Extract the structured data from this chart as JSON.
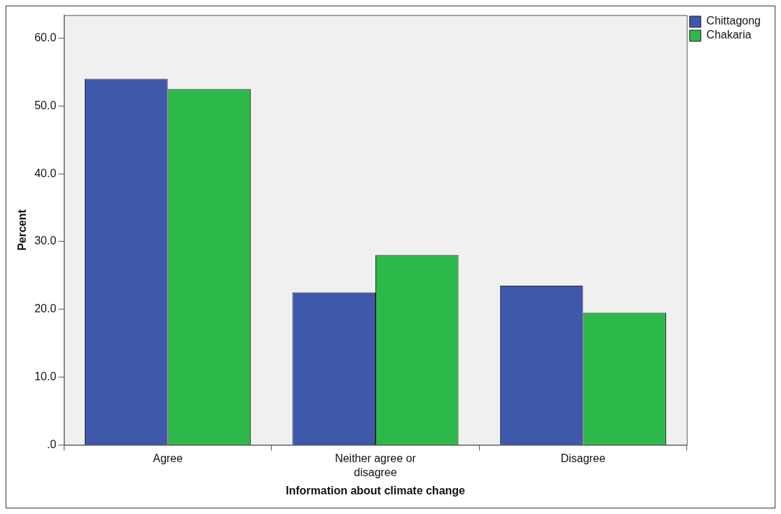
{
  "chart_data": {
    "type": "bar",
    "xlabel": "Information about climate change",
    "ylabel": "Percent",
    "categories": [
      "Agree",
      "Neither agree or disagree",
      "Disagree"
    ],
    "series": [
      {
        "name": "Chittagong",
        "color": "#3e58ac",
        "values": [
          54.0,
          22.5,
          23.5
        ]
      },
      {
        "name": "Chakaria",
        "color": "#2db84a",
        "values": [
          52.5,
          28.0,
          19.5
        ]
      }
    ],
    "ylim": [
      0,
      63.4
    ],
    "yticks": [
      {
        "value": 0,
        "label": ".0"
      },
      {
        "value": 10,
        "label": "10.0"
      },
      {
        "value": 20,
        "label": "20.0"
      },
      {
        "value": 30,
        "label": "30.0"
      },
      {
        "value": 40,
        "label": "40.0"
      },
      {
        "value": 50,
        "label": "50.0"
      },
      {
        "value": 60,
        "label": "60.0"
      }
    ],
    "grid": false,
    "legend": "top right"
  }
}
